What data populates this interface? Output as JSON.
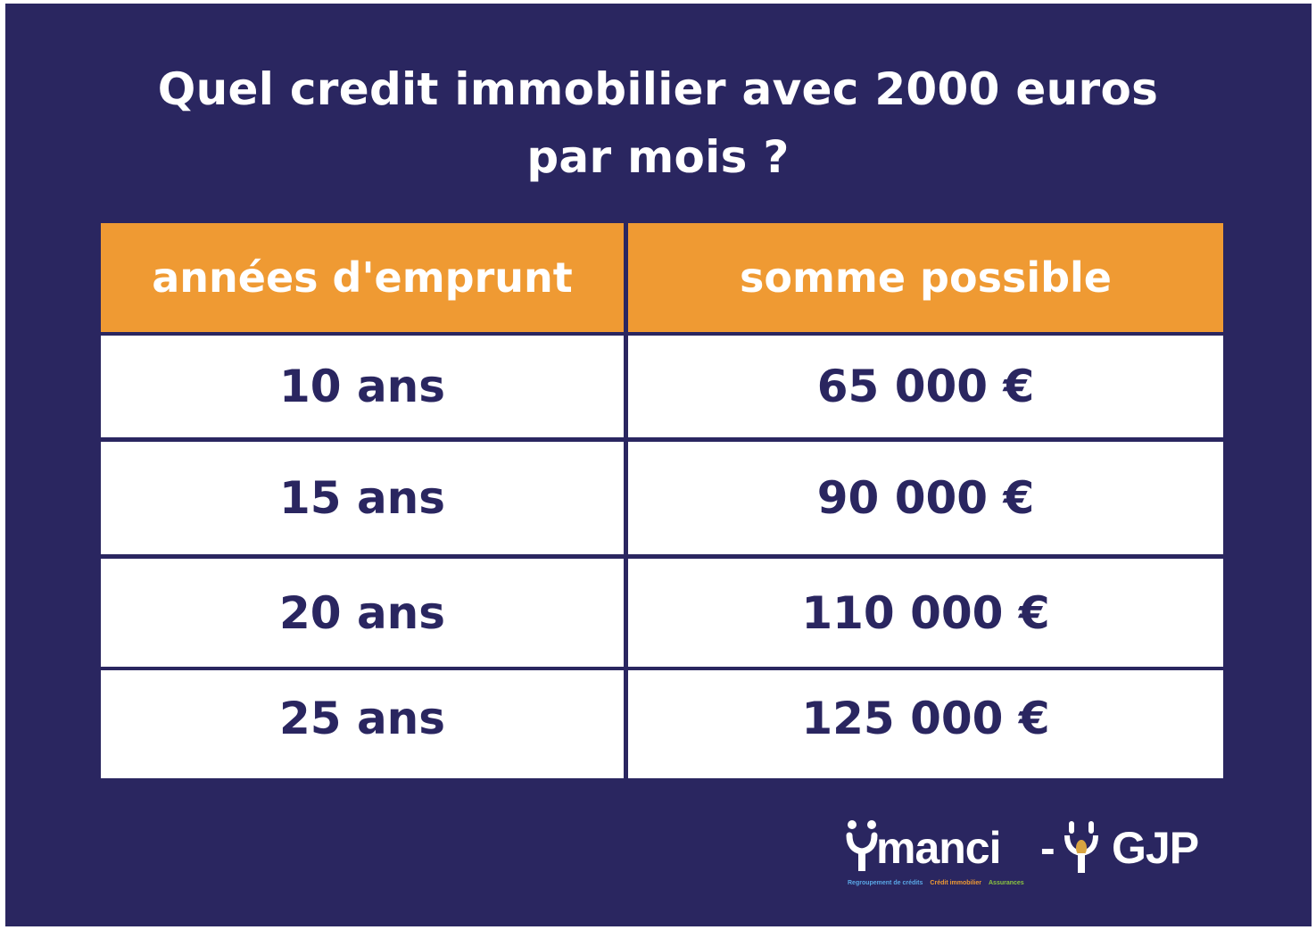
{
  "title": {
    "line1": "Quel credit immobilier avec 2000 euros",
    "line2": "par mois ?"
  },
  "table": {
    "headers": [
      "années d'emprunt",
      "somme possible"
    ],
    "rows": [
      [
        "10 ans",
        "65 000 €"
      ],
      [
        "15 ans",
        "90 000 €"
      ],
      [
        "20 ans",
        "110 000 €"
      ],
      [
        "25 ans",
        "125 000 €"
      ]
    ]
  },
  "logo": {
    "ymanci": "manci",
    "dash": "-",
    "gjp": "GJP",
    "tag_regroupement": "Regroupement de crédits",
    "tag_credit": "Crédit immobilier",
    "tag_assurances": "Assurances"
  },
  "colors": {
    "background": "#2a2660",
    "header": "#ef9a33",
    "text_dark": "#2a2660",
    "white": "#ffffff"
  }
}
